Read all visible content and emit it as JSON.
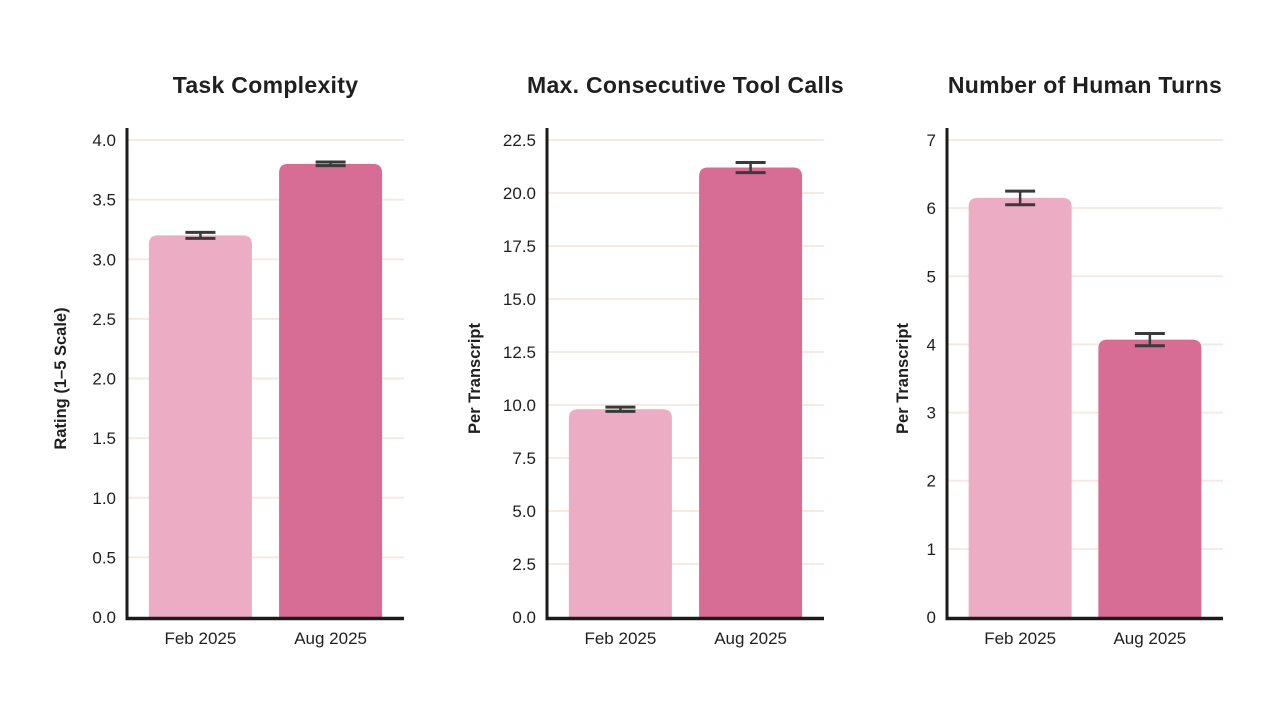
{
  "figure": {
    "background": "#ffffff",
    "text_color": "#1f1f1f",
    "axis_color": "#1b1b1b",
    "grid_color": "#f4eae3",
    "error_bar_color": "#3a3a3a",
    "bar_colors": [
      "#ecacc4",
      "#d76d94"
    ]
  },
  "chart_data": [
    {
      "type": "bar",
      "title": "Task Complexity",
      "ylabel": "Rating (1–5 Scale)",
      "xlabel": "",
      "categories": [
        "Feb 2025",
        "Aug 2025"
      ],
      "values": [
        3.2,
        3.8
      ],
      "error_bars": [
        0.025,
        0.015
      ],
      "yticks": [
        0.0,
        0.5,
        1.0,
        1.5,
        2.0,
        2.5,
        3.0,
        3.5,
        4.0
      ],
      "ylim": [
        0,
        4.1
      ],
      "tick_decimals": 1,
      "grid": true,
      "legend": "none"
    },
    {
      "type": "bar",
      "title": "Max. Consecutive Tool Calls",
      "ylabel": "Per Transcript",
      "xlabel": "",
      "categories": [
        "Feb 2025",
        "Aug 2025"
      ],
      "values": [
        9.8,
        21.2
      ],
      "error_bars": [
        0.1,
        0.24
      ],
      "yticks": [
        0.0,
        2.5,
        5.0,
        7.5,
        10.0,
        12.5,
        15.0,
        17.5,
        20.0,
        22.5
      ],
      "ylim": [
        0,
        22.8
      ],
      "tick_decimals": 1,
      "grid": true,
      "legend": "none"
    },
    {
      "type": "bar",
      "title": "Number of Human Turns",
      "ylabel": "Per Transcript",
      "xlabel": "",
      "categories": [
        "Feb 2025",
        "Aug 2025"
      ],
      "values": [
        6.15,
        4.07
      ],
      "error_bars": [
        0.1,
        0.09
      ],
      "yticks": [
        0,
        1,
        2,
        3,
        4,
        5,
        6,
        7
      ],
      "ylim": [
        0,
        7.2
      ],
      "tick_decimals": 0,
      "grid": true,
      "legend": "none"
    }
  ]
}
